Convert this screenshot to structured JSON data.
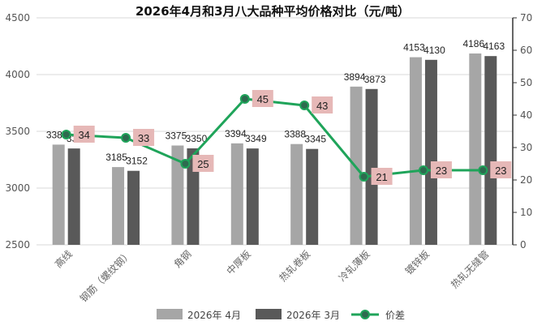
{
  "chart_data": {
    "type": "bar",
    "title": "2026年4月和3月八大品种平均价格对比（元/吨）",
    "categories": [
      "高线",
      "钢筋（螺纹钢）",
      "角钢",
      "中厚板",
      "热轧卷板",
      "冷轧薄板",
      "镀锌板",
      "热轧无缝管"
    ],
    "series": [
      {
        "name": "2026年 4月",
        "type": "bar",
        "axis": "left",
        "color": "#a6a6a6",
        "values": [
          3383,
          3185,
          3375,
          3394,
          3388,
          3894,
          4153,
          4186
        ]
      },
      {
        "name": "2026年 3月",
        "type": "bar",
        "axis": "left",
        "color": "#595959",
        "values": [
          3349,
          3152,
          3350,
          3349,
          3345,
          3873,
          4130,
          4163
        ]
      },
      {
        "name": "价差",
        "type": "line",
        "axis": "right",
        "color": "#1fa45a",
        "values": [
          34,
          33,
          25,
          45,
          43,
          21,
          23,
          23
        ]
      }
    ],
    "ylim_left": [
      2500,
      4500
    ],
    "yticks_left": [
      2500,
      3000,
      3500,
      4000,
      4500
    ],
    "ylim_right": [
      0,
      70
    ],
    "yticks_right": [
      0,
      10,
      20,
      30,
      40,
      50,
      60,
      70
    ],
    "grid": true,
    "legend": "bottom",
    "diff_label_bg": "#e6b8b7"
  }
}
